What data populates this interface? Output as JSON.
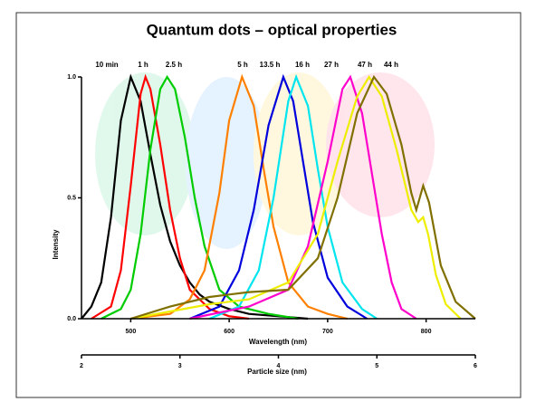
{
  "chart_data": {
    "type": "line",
    "title": "Quantum dots – optical properties",
    "xlabel": "Wavelength (nm)",
    "ylabel": "Intensity",
    "x2label": "Particle size (nm)",
    "xlim": [
      450,
      850
    ],
    "xticks": [
      500,
      600,
      700,
      800
    ],
    "ylim": [
      0,
      1
    ],
    "yticks": [
      {
        "value": 0,
        "label": "0.0"
      },
      0.5,
      {
        "value": 1,
        "label": "1.0"
      }
    ],
    "x2lim": [
      2,
      6
    ],
    "x2ticks": [
      2,
      3,
      4,
      5,
      6
    ],
    "grid": false,
    "series": [
      {
        "name": "10 min",
        "color": "#000000",
        "x": [
          450,
          460,
          470,
          480,
          490,
          500,
          510,
          520,
          530,
          540,
          550,
          560,
          570,
          580,
          600,
          620,
          650,
          680
        ],
        "values": [
          0,
          0.05,
          0.15,
          0.42,
          0.82,
          1.0,
          0.9,
          0.68,
          0.47,
          0.32,
          0.22,
          0.15,
          0.1,
          0.07,
          0.04,
          0.02,
          0.01,
          0
        ]
      },
      {
        "name": "1 h",
        "color": "#ff0000",
        "x": [
          460,
          480,
          490,
          500,
          510,
          515,
          520,
          530,
          540,
          550,
          560,
          580,
          600,
          620
        ],
        "values": [
          0,
          0.05,
          0.2,
          0.55,
          0.93,
          1.0,
          0.95,
          0.72,
          0.45,
          0.25,
          0.12,
          0.04,
          0.01,
          0
        ]
      },
      {
        "name": "2.5 h",
        "color": "#00cc00",
        "x": [
          470,
          490,
          500,
          510,
          520,
          530,
          537,
          545,
          555,
          565,
          575,
          590,
          610,
          640,
          670
        ],
        "values": [
          0,
          0.04,
          0.12,
          0.35,
          0.7,
          0.95,
          1.0,
          0.95,
          0.75,
          0.5,
          0.3,
          0.12,
          0.05,
          0.02,
          0
        ]
      },
      {
        "name": "5 h",
        "color": "#ff8000",
        "x": [
          500,
          540,
          560,
          575,
          590,
          600,
          613,
          625,
          635,
          645,
          660,
          680,
          700,
          720
        ],
        "values": [
          0,
          0.02,
          0.08,
          0.2,
          0.52,
          0.82,
          1.0,
          0.88,
          0.62,
          0.38,
          0.15,
          0.05,
          0.02,
          0
        ]
      },
      {
        "name": "13.5 h",
        "color": "#0000dd",
        "x": [
          560,
          590,
          610,
          625,
          640,
          655,
          665,
          675,
          685,
          700,
          720,
          740
        ],
        "values": [
          0,
          0.05,
          0.2,
          0.45,
          0.8,
          1.0,
          0.9,
          0.65,
          0.4,
          0.17,
          0.05,
          0
        ]
      },
      {
        "name": "16 h",
        "color": "#00e5ee",
        "x": [
          580,
          610,
          630,
          645,
          660,
          668,
          680,
          690,
          700,
          715,
          735,
          750
        ],
        "values": [
          0,
          0.05,
          0.2,
          0.5,
          0.9,
          1.0,
          0.88,
          0.62,
          0.38,
          0.15,
          0.04,
          0
        ]
      },
      {
        "name": "27 h",
        "color": "#ff00cc",
        "x": [
          560,
          620,
          660,
          680,
          700,
          715,
          723,
          735,
          745,
          755,
          765,
          775,
          790
        ],
        "values": [
          0,
          0.05,
          0.12,
          0.3,
          0.65,
          0.95,
          1.0,
          0.85,
          0.6,
          0.35,
          0.15,
          0.04,
          0
        ]
      },
      {
        "name": "47 h",
        "color": "#eeee00",
        "x": [
          500,
          540,
          580,
          620,
          660,
          690,
          710,
          730,
          742,
          755,
          770,
          785,
          792,
          797,
          802,
          810,
          820,
          835
        ],
        "values": [
          0,
          0.03,
          0.06,
          0.08,
          0.15,
          0.35,
          0.65,
          0.92,
          1.0,
          0.92,
          0.7,
          0.45,
          0.4,
          0.42,
          0.35,
          0.18,
          0.06,
          0
        ]
      },
      {
        "name": "44 h",
        "color": "#807000",
        "x": [
          500,
          540,
          580,
          620,
          660,
          690,
          710,
          730,
          747,
          760,
          775,
          785,
          790,
          797,
          803,
          815,
          830,
          850
        ],
        "values": [
          0,
          0.05,
          0.09,
          0.11,
          0.12,
          0.25,
          0.5,
          0.85,
          1.0,
          0.93,
          0.72,
          0.52,
          0.45,
          0.55,
          0.48,
          0.22,
          0.07,
          0
        ]
      }
    ]
  }
}
